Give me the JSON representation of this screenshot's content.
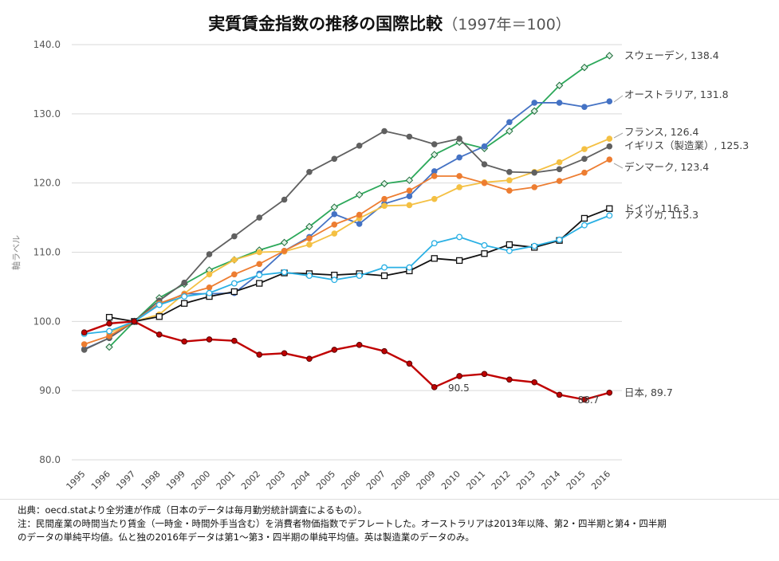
{
  "title": "実質賃金指数の推移の国際比較",
  "subtitle": "（1997年＝100）",
  "chart_data": {
    "type": "line",
    "ylabel": "軸ラベル",
    "xlabel": "",
    "ylim": [
      80,
      140
    ],
    "yticks": [
      "80.0",
      "90.0",
      "100.0",
      "110.0",
      "120.0",
      "130.0",
      "140.0"
    ],
    "categories": [
      "1995",
      "1996",
      "1997",
      "1998",
      "1999",
      "2000",
      "2001",
      "2002",
      "2003",
      "2004",
      "2005",
      "2006",
      "2007",
      "2008",
      "2009",
      "2010",
      "2011",
      "2012",
      "2013",
      "2014",
      "2015",
      "2016"
    ],
    "series": [
      {
        "name": "スウェーデン",
        "end_label": "スウェーデン, 138.4",
        "color": "#2ca85a",
        "marker": "diamond",
        "values": [
          null,
          96.3,
          100.0,
          103.4,
          105.4,
          107.4,
          108.9,
          110.3,
          111.4,
          113.7,
          116.5,
          118.3,
          119.9,
          120.4,
          124.1,
          125.9,
          125.0,
          127.5,
          130.4,
          134.1,
          136.7,
          138.4
        ]
      },
      {
        "name": "オーストラリア",
        "end_label": "オーストラリア, 131.8",
        "color": "#4472c4",
        "marker": "circle",
        "values": [
          96.0,
          97.6,
          100.0,
          102.4,
          104.0,
          104.0,
          104.1,
          106.9,
          110.2,
          112.2,
          115.5,
          114.1,
          117.0,
          118.1,
          121.7,
          123.7,
          125.3,
          128.8,
          131.6,
          131.6,
          131.0,
          131.8
        ]
      },
      {
        "name": "フランス",
        "end_label": "フランス, 126.4",
        "color": "#f4c043",
        "marker": "circle",
        "values": [
          null,
          98.3,
          100.0,
          101.0,
          104.0,
          106.8,
          108.9,
          110.0,
          110.1,
          111.1,
          112.7,
          114.9,
          116.7,
          116.8,
          117.7,
          119.4,
          120.1,
          120.4,
          121.6,
          123.0,
          124.9,
          126.4
        ]
      },
      {
        "name": "イギリス（製造業）",
        "end_label": "イギリス（製造業）, 125.3",
        "color": "#606060",
        "marker": "circle",
        "values": [
          95.9,
          97.6,
          100.0,
          103.0,
          105.6,
          109.7,
          112.3,
          115.0,
          117.6,
          121.6,
          123.5,
          125.4,
          127.5,
          126.7,
          125.6,
          126.4,
          122.7,
          121.6,
          121.5,
          122.0,
          123.5,
          125.3
        ]
      },
      {
        "name": "デンマーク",
        "end_label": "デンマーク, 123.4",
        "color": "#ed7d31",
        "marker": "circle",
        "values": [
          96.7,
          97.9,
          100.0,
          102.6,
          103.9,
          104.9,
          106.8,
          108.3,
          110.2,
          112.0,
          114.0,
          115.4,
          117.7,
          118.9,
          121.0,
          121.0,
          120.0,
          118.9,
          119.4,
          120.3,
          121.5,
          123.4
        ]
      },
      {
        "name": "ドイツ",
        "end_label": "ドイツ, 116.3",
        "color": "#111111",
        "marker": "square",
        "values": [
          null,
          100.6,
          100.0,
          100.7,
          102.6,
          103.6,
          104.3,
          105.5,
          107.0,
          106.9,
          106.7,
          106.9,
          106.6,
          107.3,
          109.1,
          108.8,
          109.8,
          111.1,
          110.7,
          111.7,
          114.9,
          116.3
        ]
      },
      {
        "name": "アメリカ",
        "end_label": "アメリカ, 115.3",
        "color": "#2ab0e4",
        "marker": "opencircle",
        "values": [
          98.2,
          98.6,
          100.0,
          102.4,
          103.6,
          104.1,
          105.5,
          106.7,
          107.1,
          106.6,
          106.0,
          106.6,
          107.8,
          107.8,
          111.3,
          112.2,
          111.0,
          110.2,
          110.9,
          111.8,
          113.9,
          115.3
        ]
      },
      {
        "name": "日本",
        "end_label": "日本, 89.7",
        "color": "#c00000",
        "marker": "circle",
        "values": [
          98.4,
          99.7,
          100.0,
          98.1,
          97.1,
          97.4,
          97.2,
          95.2,
          95.4,
          94.6,
          95.9,
          96.6,
          95.7,
          93.9,
          90.5,
          92.1,
          92.4,
          91.6,
          91.2,
          89.4,
          88.7,
          89.7
        ]
      }
    ],
    "annotations": [
      "90.5",
      "88.7"
    ]
  },
  "notes": {
    "source": "出典：oecd.statより全労連が作成（日本のデータは毎月勤労統計調査によるもの）。",
    "note1": "注：民間産業の時間当たり賃金（一時金・時間外手当含む）を消費者物価指数でデフレートした。オーストラリアは2013年以降、第2・四半期と第4・四半期",
    "note2": "のデータの単純平均値。仏と独の2016年データは第1～第3・四半期の単純平均値。英は製造業のデータのみ。"
  }
}
